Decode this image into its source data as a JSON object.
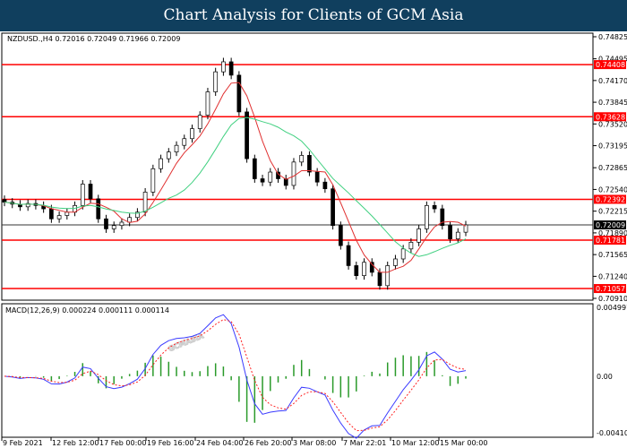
{
  "header": {
    "title": "Chart Analysis for Clients of GCM Asia"
  },
  "chart_data": [
    {
      "type": "candlestick",
      "symbol_info": "NZDUSD.,H4  0.72016 0.72049 0.71966 0.72009",
      "ylim": [
        0.7091,
        0.74825
      ],
      "y_ticks": [
        "0.74825",
        "0.74495",
        "0.74170",
        "0.73845",
        "0.73520",
        "0.73195",
        "0.72865",
        "0.72540",
        "0.72215",
        "0.71890",
        "0.71565",
        "0.71240",
        "0.70910"
      ],
      "levels": [
        "0.74408",
        "0.73628",
        "0.72392",
        "0.71781",
        "0.71057"
      ],
      "current_price": "0.72009",
      "level_color": "#ff0000",
      "closes": [
        0.7235,
        0.7232,
        0.7228,
        0.7233,
        0.723,
        0.7225,
        0.721,
        0.7215,
        0.722,
        0.723,
        0.7262,
        0.724,
        0.721,
        0.7195,
        0.72,
        0.7205,
        0.7212,
        0.722,
        0.725,
        0.7285,
        0.73,
        0.731,
        0.732,
        0.733,
        0.7345,
        0.7365,
        0.74,
        0.743,
        0.7445,
        0.7425,
        0.737,
        0.73,
        0.727,
        0.7265,
        0.728,
        0.727,
        0.726,
        0.7295,
        0.7305,
        0.728,
        0.7265,
        0.7255,
        0.72,
        0.717,
        0.714,
        0.7125,
        0.7145,
        0.713,
        0.711,
        0.714,
        0.715,
        0.7165,
        0.7175,
        0.7195,
        0.723,
        0.7225,
        0.72,
        0.718,
        0.719,
        0.7201
      ]
    },
    {
      "type": "macd",
      "label": "MACD(12,26,9) 0.000224 0.000111 0.000114",
      "ylim": [
        -0.004103,
        0.004997
      ],
      "y_ticks": [
        "0.004997",
        "0.00",
        "-0.004103"
      ]
    }
  ],
  "x_labels": [
    "9 Feb 2021",
    "12 Feb 12:00",
    "17 Feb 00:00",
    "19 Feb 16:00",
    "24 Feb 04:00",
    "26 Feb 20:00",
    "3 Mar 08:00",
    "7 Mar 22:01",
    "10 Mar 12:00",
    "15 Mar 00:00"
  ],
  "watermark": "GCMASIA"
}
